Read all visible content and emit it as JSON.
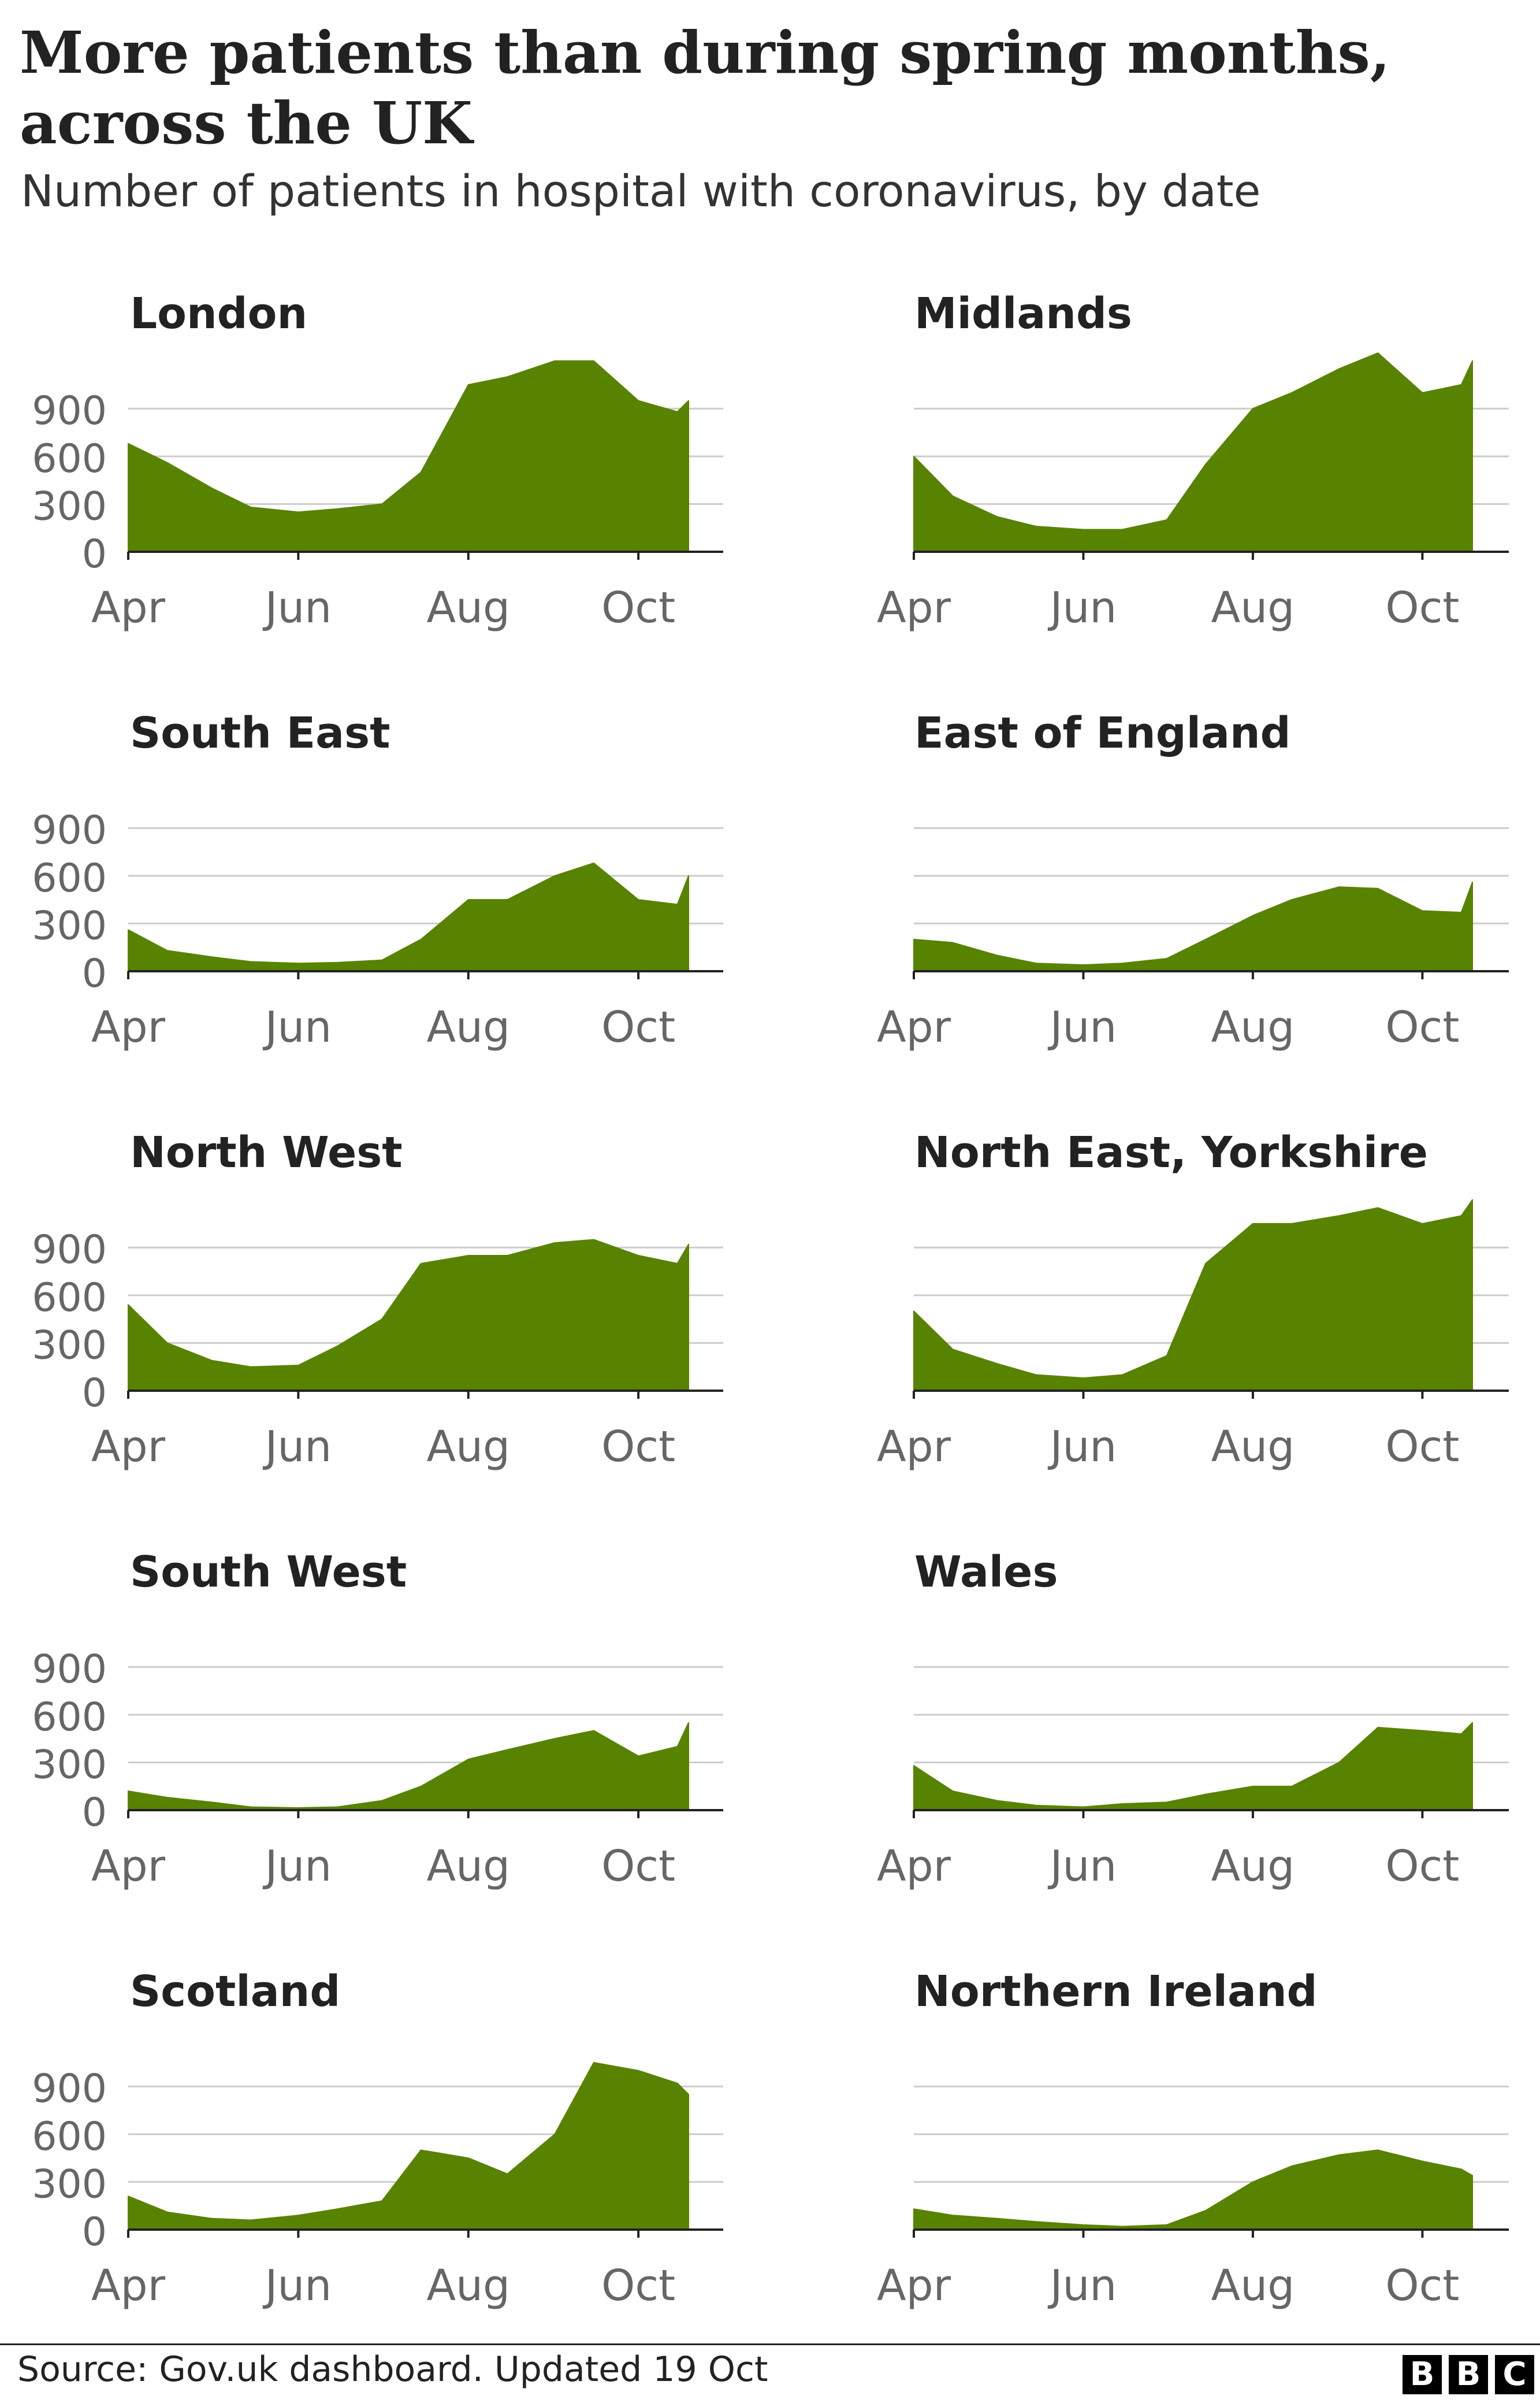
{
  "title": "More patients than during spring months, across the UK",
  "subtitle": "Number of patients in hospital with coronavirus, by date",
  "source": "Source: Gov.uk dashboard. Updated 19 Oct",
  "logo": [
    "B",
    "B",
    "C"
  ],
  "colors": {
    "area": "#588300",
    "grid": "#cccccc",
    "axis": "#222222",
    "tick_text": "#666666"
  },
  "chart_data": [
    {
      "type": "area",
      "title": "London",
      "x_ticks": [
        "Apr",
        "Jun",
        "Aug",
        "Oct"
      ],
      "y_ticks": [
        "0",
        "300",
        "600",
        "900"
      ],
      "ylim": [
        0,
        1300
      ],
      "x": [
        "1 Apr",
        "15 Apr",
        "1 May",
        "15 May",
        "1 Jun",
        "15 Jun",
        "1 Jul",
        "15 Jul",
        "1 Aug",
        "15 Aug",
        "1 Sep",
        "15 Sep",
        "1 Oct",
        "15 Oct",
        "19 Oct"
      ],
      "values": [
        680,
        560,
        400,
        280,
        250,
        270,
        300,
        500,
        1050,
        1100,
        1200,
        1200,
        950,
        880,
        950
      ]
    },
    {
      "type": "area",
      "title": "Midlands",
      "x_ticks": [
        "Apr",
        "Jun",
        "Aug",
        "Oct"
      ],
      "y_ticks": [
        "0",
        "300",
        "600",
        "900"
      ],
      "ylim": [
        0,
        1300
      ],
      "x": [
        "1 Apr",
        "15 Apr",
        "1 May",
        "15 May",
        "1 Jun",
        "15 Jun",
        "1 Jul",
        "15 Jul",
        "1 Aug",
        "15 Aug",
        "1 Sep",
        "15 Sep",
        "1 Oct",
        "15 Oct",
        "19 Oct"
      ],
      "values": [
        600,
        350,
        220,
        160,
        140,
        140,
        200,
        550,
        900,
        1000,
        1150,
        1250,
        1000,
        1050,
        1200
      ]
    },
    {
      "type": "area",
      "title": "South East",
      "x_ticks": [
        "Apr",
        "Jun",
        "Aug",
        "Oct"
      ],
      "y_ticks": [
        "0",
        "300",
        "600",
        "900"
      ],
      "ylim": [
        0,
        1000
      ],
      "x": [
        "1 Apr",
        "15 Apr",
        "1 May",
        "15 May",
        "1 Jun",
        "15 Jun",
        "1 Jul",
        "15 Jul",
        "1 Aug",
        "15 Aug",
        "1 Sep",
        "15 Sep",
        "1 Oct",
        "15 Oct",
        "19 Oct"
      ],
      "values": [
        260,
        130,
        90,
        60,
        50,
        55,
        70,
        200,
        450,
        450,
        600,
        680,
        450,
        420,
        600
      ]
    },
    {
      "type": "area",
      "title": "East of England",
      "x_ticks": [
        "Apr",
        "Jun",
        "Aug",
        "Oct"
      ],
      "y_ticks": [
        "0",
        "300",
        "600",
        "900"
      ],
      "ylim": [
        0,
        1000
      ],
      "x": [
        "1 Apr",
        "15 Apr",
        "1 May",
        "15 May",
        "1 Jun",
        "15 Jun",
        "1 Jul",
        "15 Jul",
        "1 Aug",
        "15 Aug",
        "1 Sep",
        "15 Sep",
        "1 Oct",
        "15 Oct",
        "19 Oct"
      ],
      "values": [
        200,
        180,
        100,
        50,
        40,
        50,
        80,
        200,
        350,
        450,
        530,
        520,
        380,
        370,
        560
      ]
    },
    {
      "type": "area",
      "title": "North West",
      "x_ticks": [
        "Apr",
        "Jun",
        "Aug",
        "Oct"
      ],
      "y_ticks": [
        "0",
        "300",
        "600",
        "900"
      ],
      "ylim": [
        0,
        1300
      ],
      "x": [
        "1 Apr",
        "15 Apr",
        "1 May",
        "15 May",
        "1 Jun",
        "15 Jun",
        "1 Jul",
        "15 Jul",
        "1 Aug",
        "15 Aug",
        "1 Sep",
        "15 Sep",
        "1 Oct",
        "15 Oct",
        "19 Oct"
      ],
      "values": [
        540,
        300,
        190,
        150,
        160,
        280,
        450,
        800,
        850,
        850,
        930,
        950,
        850,
        800,
        920
      ]
    },
    {
      "type": "area",
      "title": "North East, Yorkshire",
      "x_ticks": [
        "Apr",
        "Jun",
        "Aug",
        "Oct"
      ],
      "y_ticks": [
        "0",
        "300",
        "600",
        "900"
      ],
      "ylim": [
        0,
        1300
      ],
      "x": [
        "1 Apr",
        "15 Apr",
        "1 May",
        "15 May",
        "1 Jun",
        "15 Jun",
        "1 Jul",
        "15 Jul",
        "1 Aug",
        "15 Aug",
        "1 Sep",
        "15 Sep",
        "1 Oct",
        "15 Oct",
        "19 Oct"
      ],
      "values": [
        500,
        260,
        170,
        100,
        80,
        100,
        220,
        800,
        1050,
        1050,
        1100,
        1150,
        1050,
        1100,
        1200
      ]
    },
    {
      "type": "area",
      "title": "South West",
      "x_ticks": [
        "Apr",
        "Jun",
        "Aug",
        "Oct"
      ],
      "y_ticks": [
        "0",
        "300",
        "600",
        "900"
      ],
      "ylim": [
        0,
        1000
      ],
      "x": [
        "1 Apr",
        "15 Apr",
        "1 May",
        "15 May",
        "1 Jun",
        "15 Jun",
        "1 Jul",
        "15 Jul",
        "1 Aug",
        "15 Aug",
        "1 Sep",
        "15 Sep",
        "1 Oct",
        "15 Oct",
        "19 Oct"
      ],
      "values": [
        120,
        80,
        50,
        20,
        15,
        20,
        60,
        150,
        320,
        380,
        450,
        500,
        340,
        400,
        550
      ]
    },
    {
      "type": "area",
      "title": "Wales",
      "x_ticks": [
        "Apr",
        "Jun",
        "Aug",
        "Oct"
      ],
      "y_ticks": [
        "0",
        "300",
        "600",
        "900"
      ],
      "ylim": [
        0,
        1000
      ],
      "x": [
        "1 Apr",
        "15 Apr",
        "1 May",
        "15 May",
        "1 Jun",
        "15 Jun",
        "1 Jul",
        "15 Jul",
        "1 Aug",
        "15 Aug",
        "1 Sep",
        "15 Sep",
        "1 Oct",
        "15 Oct",
        "19 Oct"
      ],
      "values": [
        280,
        120,
        60,
        30,
        20,
        40,
        50,
        100,
        150,
        150,
        300,
        520,
        500,
        480,
        550
      ]
    },
    {
      "type": "area",
      "title": "Scotland",
      "x_ticks": [
        "Apr",
        "Jun",
        "Aug",
        "Oct"
      ],
      "y_ticks": [
        "0",
        "300",
        "600",
        "900"
      ],
      "ylim": [
        0,
        1300
      ],
      "x": [
        "1 Apr",
        "15 Apr",
        "1 May",
        "15 May",
        "1 Jun",
        "15 Jun",
        "1 Jul",
        "15 Jul",
        "1 Aug",
        "15 Aug",
        "1 Sep",
        "15 Sep",
        "1 Oct",
        "15 Oct",
        "19 Oct"
      ],
      "values": [
        210,
        110,
        70,
        60,
        90,
        130,
        180,
        500,
        450,
        350,
        600,
        1050,
        1000,
        920,
        850
      ]
    },
    {
      "type": "area",
      "title": "Northern Ireland",
      "x_ticks": [
        "Apr",
        "Jun",
        "Aug",
        "Oct"
      ],
      "y_ticks": [
        "0",
        "300",
        "600",
        "900"
      ],
      "ylim": [
        0,
        1000
      ],
      "x": [
        "1 Apr",
        "15 Apr",
        "1 May",
        "15 May",
        "1 Jun",
        "15 Jun",
        "1 Jul",
        "15 Jul",
        "1 Aug",
        "15 Aug",
        "1 Sep",
        "15 Sep",
        "1 Oct",
        "15 Oct",
        "19 Oct"
      ],
      "values": [
        130,
        90,
        70,
        50,
        30,
        20,
        30,
        120,
        300,
        400,
        470,
        500,
        430,
        380,
        340
      ]
    }
  ]
}
